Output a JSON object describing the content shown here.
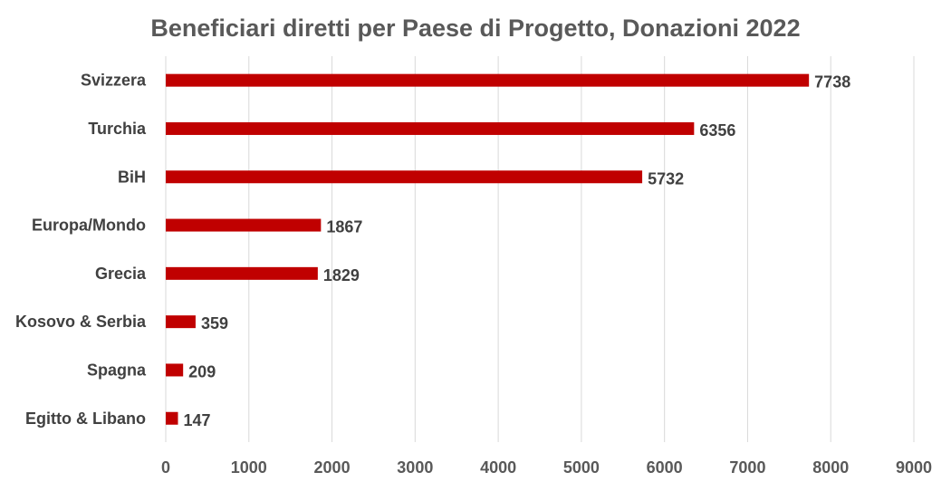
{
  "chart_data": {
    "type": "bar",
    "orientation": "horizontal",
    "title": "Beneficiari diretti per Paese di Progetto, Donazioni 2022",
    "categories": [
      "Svizzera",
      "Turchia",
      "BiH",
      "Europa/Mondo",
      "Grecia",
      "Kosovo & Serbia",
      "Spagna",
      "Egitto & Libano"
    ],
    "values": [
      7738,
      6356,
      5732,
      1867,
      1829,
      359,
      209,
      147
    ],
    "xlim": [
      0,
      9000
    ],
    "xticks": [
      0,
      1000,
      2000,
      3000,
      4000,
      5000,
      6000,
      7000,
      8000,
      9000
    ],
    "xlabel": "",
    "ylabel": "",
    "grid": true,
    "bar_color": "#c00000",
    "legend": "none"
  }
}
